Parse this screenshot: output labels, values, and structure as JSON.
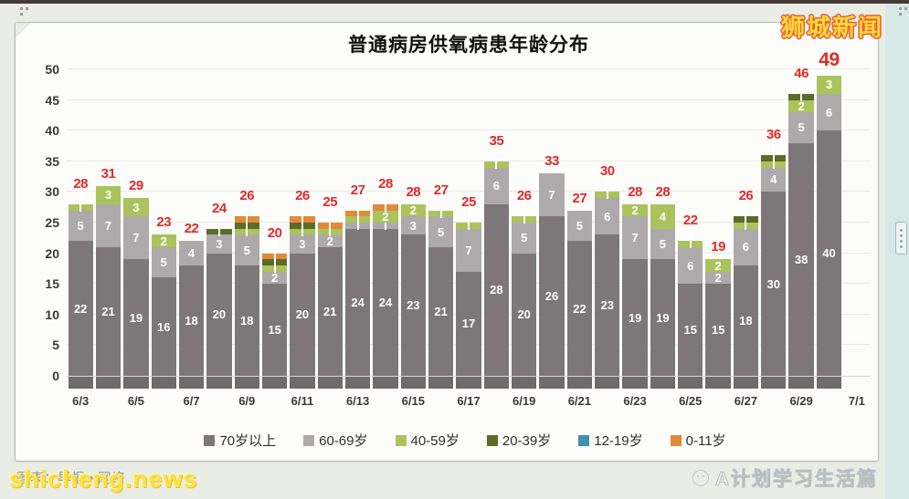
{
  "window": {
    "brand_watermark": "狮城新闻",
    "site_watermark": "shicheng.news",
    "account_watermark": "A计划学习生活篇",
    "caption_left": "图表：早报 • 网络"
  },
  "chart_data": {
    "type": "stacked-bar",
    "title": "普通病房供氧病患年龄分布",
    "ylim": [
      0,
      50
    ],
    "ytick_step": 5,
    "grid": true,
    "legend_position": "bottom",
    "n_slots": 29,
    "x_tick_every": 2,
    "x_tick_labels": [
      "6/3",
      "6/5",
      "6/7",
      "6/9",
      "6/11",
      "6/13",
      "6/15",
      "6/17",
      "6/19",
      "6/21",
      "6/23",
      "6/25",
      "6/27",
      "6/29",
      "7/1"
    ],
    "series_order": [
      "70岁以上",
      "60-69岁",
      "40-59岁",
      "20-39岁",
      "12-19岁",
      "0-11岁"
    ],
    "series_colors": [
      "#7d777a",
      "#aeaaab",
      "#abc35c",
      "#5d6b27",
      "#3e93a9",
      "#e18a3b"
    ],
    "total_color": "#e02a2a",
    "bars": [
      {
        "segments": [
          22,
          5,
          1,
          0,
          0,
          0
        ],
        "total": 28
      },
      {
        "segments": [
          21,
          7,
          3,
          0,
          0,
          0
        ],
        "total": 31
      },
      {
        "segments": [
          19,
          7,
          3,
          0,
          0,
          0
        ],
        "total": 29
      },
      {
        "segments": [
          16,
          5,
          2,
          0,
          0,
          0
        ],
        "total": 23
      },
      {
        "segments": [
          18,
          4,
          0,
          0,
          0,
          0
        ],
        "total": 22
      },
      {
        "segments": [
          20,
          3,
          0,
          1,
          0,
          0
        ],
        "total": 24
      },
      {
        "segments": [
          18,
          5,
          1,
          1,
          0,
          1
        ],
        "total": 26
      },
      {
        "segments": [
          15,
          2,
          1,
          1,
          0,
          1
        ],
        "total": 20
      },
      {
        "segments": [
          20,
          3,
          1,
          1,
          0,
          1
        ],
        "total": 26
      },
      {
        "segments": [
          21,
          2,
          1,
          0,
          0,
          1
        ],
        "total": 25
      },
      {
        "segments": [
          24,
          1,
          1,
          0,
          0,
          1
        ],
        "total": 27
      },
      {
        "segments": [
          24,
          1,
          2,
          0,
          0,
          1
        ],
        "total": 28
      },
      {
        "segments": [
          23,
          3,
          2,
          0,
          0,
          0
        ],
        "total": 28
      },
      {
        "segments": [
          21,
          5,
          1,
          0,
          0,
          0
        ],
        "total": 27
      },
      {
        "segments": [
          17,
          7,
          1,
          0,
          0,
          0
        ],
        "total": 25
      },
      {
        "segments": [
          28,
          6,
          1,
          0,
          0,
          0
        ],
        "total": 35
      },
      {
        "segments": [
          20,
          5,
          1,
          0,
          0,
          0
        ],
        "total": 26
      },
      {
        "segments": [
          26,
          7,
          0,
          0,
          0,
          0
        ],
        "total": 33
      },
      {
        "segments": [
          22,
          5,
          0,
          0,
          0,
          0
        ],
        "total": 27
      },
      {
        "segments": [
          23,
          6,
          1,
          0,
          0,
          0
        ],
        "total": 30
      },
      {
        "segments": [
          19,
          7,
          2,
          0,
          0,
          0
        ],
        "total": 28
      },
      {
        "segments": [
          19,
          5,
          4,
          0,
          0,
          0
        ],
        "total": 28
      },
      {
        "segments": [
          15,
          6,
          1,
          0,
          0,
          0
        ],
        "total": 22
      },
      {
        "segments": [
          15,
          2,
          2,
          0,
          0,
          0
        ],
        "total": 19
      },
      {
        "segments": [
          18,
          6,
          1,
          1,
          0,
          0
        ],
        "total": 26
      },
      {
        "segments": [
          30,
          4,
          1,
          1,
          0,
          0
        ],
        "total": 36
      },
      {
        "segments": [
          38,
          5,
          2,
          1,
          0,
          0
        ],
        "total": 46
      },
      {
        "segments": [
          40,
          6,
          3,
          0,
          0,
          0
        ],
        "total": 49
      }
    ]
  }
}
